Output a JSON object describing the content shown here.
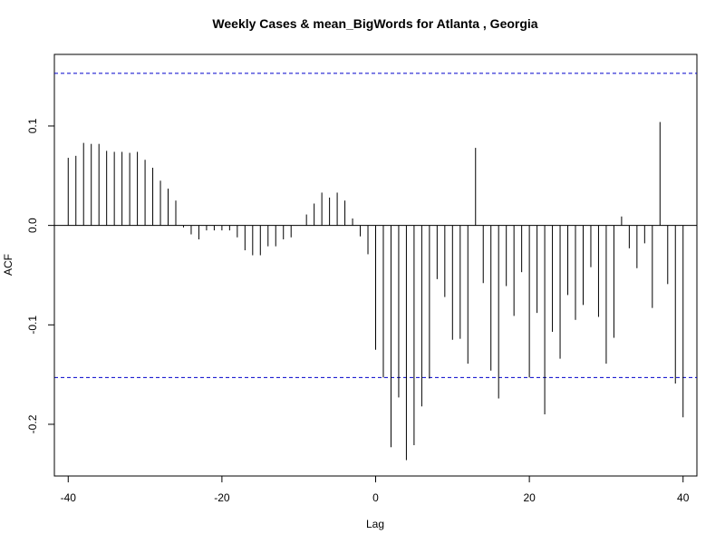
{
  "chart_data": {
    "type": "bar",
    "title": "Weekly Cases & mean_BigWords for Atlanta , Georgia",
    "xlabel": "Lag",
    "ylabel": "ACF",
    "xlim": [
      -41.8,
      41.8
    ],
    "ylim": [
      -0.252,
      0.172
    ],
    "x_ticks": [
      -40,
      -20,
      0,
      20,
      40
    ],
    "x_tick_labels": [
      "-40",
      "-20",
      "0",
      "20",
      "40"
    ],
    "y_ticks": [
      -0.2,
      -0.1,
      0.0,
      0.1
    ],
    "y_tick_labels": [
      "-0.2",
      "-0.1",
      "0.0",
      "0.1"
    ],
    "confidence_bounds": [
      0.153,
      -0.153
    ],
    "grid": false,
    "lags": [
      -40,
      -39,
      -38,
      -37,
      -36,
      -35,
      -34,
      -33,
      -32,
      -31,
      -30,
      -29,
      -28,
      -27,
      -26,
      -25,
      -24,
      -23,
      -22,
      -21,
      -20,
      -19,
      -18,
      -17,
      -16,
      -15,
      -14,
      -13,
      -12,
      -11,
      -10,
      -9,
      -8,
      -7,
      -6,
      -5,
      -4,
      -3,
      -2,
      -1,
      0,
      1,
      2,
      3,
      4,
      5,
      6,
      7,
      8,
      9,
      10,
      11,
      12,
      13,
      14,
      15,
      16,
      17,
      18,
      19,
      20,
      21,
      22,
      23,
      24,
      25,
      26,
      27,
      28,
      29,
      30,
      31,
      32,
      33,
      34,
      35,
      36,
      37,
      38,
      39,
      40
    ],
    "values": [
      0.068,
      0.07,
      0.083,
      0.082,
      0.082,
      0.075,
      0.074,
      0.074,
      0.073,
      0.074,
      0.066,
      0.058,
      0.045,
      0.037,
      0.025,
      -0.002,
      -0.009,
      -0.014,
      -0.005,
      -0.005,
      -0.005,
      -0.005,
      -0.012,
      -0.025,
      -0.03,
      -0.03,
      -0.021,
      -0.021,
      -0.014,
      -0.012,
      0.0,
      0.011,
      0.022,
      0.033,
      0.028,
      0.033,
      0.025,
      0.007,
      -0.011,
      -0.029,
      -0.125,
      -0.153,
      -0.223,
      -0.173,
      -0.236,
      -0.221,
      -0.182,
      -0.154,
      -0.054,
      -0.072,
      -0.115,
      -0.114,
      -0.139,
      0.078,
      -0.058,
      -0.146,
      -0.174,
      -0.061,
      -0.091,
      -0.047,
      -0.153,
      -0.088,
      -0.19,
      -0.107,
      -0.134,
      -0.07,
      -0.095,
      -0.08,
      -0.042,
      -0.092,
      -0.139,
      -0.113,
      0.009,
      -0.023,
      -0.043,
      -0.018,
      -0.083,
      0.104,
      -0.059,
      -0.159,
      -0.193
    ]
  }
}
